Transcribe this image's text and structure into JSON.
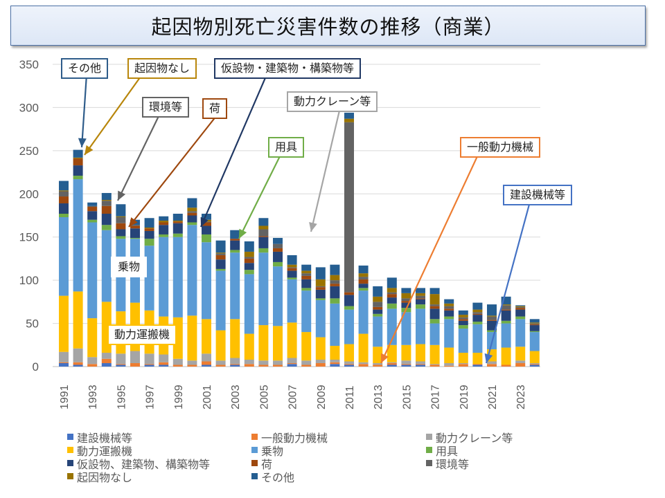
{
  "title": "起因物別死亡災害件数の推移（商業）",
  "chart_data": {
    "type": "bar",
    "stacked": true,
    "title": "起因物別死亡災害件数の推移（商業）",
    "xlabel": "",
    "ylabel": "",
    "ylim": [
      0,
      350
    ],
    "yticks": [
      0,
      50,
      100,
      150,
      200,
      250,
      300,
      350
    ],
    "grid": true,
    "legend_position": "bottom",
    "categories": [
      "1991",
      "1992",
      "1993",
      "1994",
      "1995",
      "1996",
      "1997",
      "1998",
      "1999",
      "2000",
      "2001",
      "2002",
      "2003",
      "2004",
      "2005",
      "2006",
      "2007",
      "2008",
      "2009",
      "2010",
      "2011",
      "2012",
      "2013",
      "2014",
      "2015",
      "2016",
      "2017",
      "2018",
      "2019",
      "2020",
      "2021",
      "2022",
      "2023",
      "2024"
    ],
    "xtick_labels": [
      "1991",
      "1993",
      "1995",
      "1997",
      "1999",
      "2001",
      "2003",
      "2005",
      "2007",
      "2009",
      "2011",
      "2013",
      "2015",
      "2017",
      "2019",
      "2021",
      "2023"
    ],
    "series": [
      {
        "name": "建設機械等",
        "color": "#4472c4",
        "values": [
          4,
          2,
          0,
          4,
          2,
          0,
          2,
          2,
          0,
          0,
          2,
          0,
          2,
          0,
          0,
          0,
          3,
          0,
          0,
          3,
          2,
          0,
          0,
          2,
          2,
          2,
          0,
          0,
          0,
          2,
          0,
          0,
          0,
          2
        ]
      },
      {
        "name": "一般動力機械",
        "color": "#ed7d31",
        "values": [
          1,
          3,
          3,
          5,
          1,
          4,
          1,
          3,
          2,
          2,
          4,
          2,
          1,
          3,
          2,
          2,
          1,
          2,
          4,
          2,
          1,
          3,
          2,
          2,
          1,
          1,
          2,
          1,
          3,
          1,
          3,
          2,
          4,
          1
        ]
      },
      {
        "name": "動力クレーン等",
        "color": "#a5a5a5",
        "values": [
          12,
          16,
          8,
          7,
          12,
          14,
          12,
          9,
          7,
          5,
          9,
          5,
          7,
          5,
          5,
          5,
          6,
          5,
          4,
          3,
          3,
          2,
          2,
          1,
          4,
          3,
          1,
          3,
          1,
          0,
          3,
          0,
          3,
          1
        ]
      },
      {
        "name": "動力運搬機",
        "color": "#ffc000",
        "values": [
          65,
          66,
          45,
          59,
          49,
          56,
          50,
          44,
          48,
          52,
          40,
          35,
          45,
          30,
          41,
          40,
          41,
          33,
          26,
          16,
          20,
          33,
          19,
          20,
          18,
          20,
          22,
          18,
          12,
          13,
          14,
          20,
          16,
          14
        ]
      },
      {
        "name": "乗物",
        "color": "#5b9bd5",
        "values": [
          91,
          130,
          111,
          83,
          84,
          74,
          75,
          92,
          93,
          105,
          89,
          69,
          77,
          69,
          84,
          69,
          50,
          48,
          43,
          49,
          40,
          50,
          35,
          42,
          38,
          41,
          25,
          33,
          28,
          33,
          20,
          28,
          32,
          22
        ]
      },
      {
        "name": "用具",
        "color": "#70ad47",
        "values": [
          4,
          4,
          3,
          6,
          3,
          1,
          8,
          3,
          4,
          3,
          9,
          2,
          3,
          5,
          5,
          5,
          2,
          3,
          2,
          6,
          4,
          3,
          3,
          6,
          5,
          5,
          5,
          3,
          4,
          3,
          2,
          3,
          3,
          1
        ]
      },
      {
        "name": "仮設物、建築物、構築物等",
        "color": "#264478",
        "values": [
          12,
          12,
          10,
          13,
          8,
          11,
          9,
          11,
          12,
          8,
          10,
          11,
          11,
          8,
          13,
          12,
          8,
          10,
          10,
          14,
          13,
          5,
          5,
          7,
          6,
          6,
          12,
          7,
          5,
          8,
          11,
          12,
          8,
          7
        ]
      },
      {
        "name": "荷",
        "color": "#9e480e",
        "values": [
          8,
          8,
          5,
          9,
          7,
          3,
          3,
          3,
          2,
          3,
          4,
          5,
          2,
          5,
          1,
          4,
          3,
          4,
          3,
          3,
          3,
          5,
          3,
          4,
          2,
          1,
          3,
          2,
          2,
          1,
          1,
          1,
          2,
          1
        ]
      },
      {
        "name": "環境等",
        "color": "#636363",
        "values": [
          6,
          0,
          1,
          6,
          7,
          1,
          0,
          0,
          0,
          2,
          1,
          2,
          0,
          2,
          8,
          5,
          1,
          3,
          1,
          4,
          197,
          3,
          6,
          2,
          3,
          3,
          2,
          3,
          2,
          2,
          4,
          5,
          1,
          1
        ]
      },
      {
        "name": "起因物なし",
        "color": "#997300",
        "values": [
          1,
          1,
          0,
          1,
          1,
          0,
          1,
          2,
          1,
          4,
          2,
          1,
          0,
          6,
          4,
          0,
          3,
          3,
          8,
          6,
          4,
          4,
          6,
          5,
          6,
          3,
          12,
          3,
          3,
          3,
          1,
          1,
          1,
          1
        ]
      },
      {
        "name": "その他",
        "color": "#255e91",
        "values": [
          11,
          9,
          4,
          8,
          14,
          6,
          11,
          5,
          8,
          11,
          7,
          14,
          10,
          12,
          9,
          7,
          11,
          7,
          14,
          12,
          7,
          9,
          12,
          12,
          6,
          6,
          7,
          5,
          5,
          8,
          13,
          9,
          1,
          4
        ]
      }
    ],
    "annotations": [
      "その他",
      "起因物なし",
      "仮設物・建築物・構築物等",
      "環境等",
      "荷",
      "動力クレーン等",
      "用具",
      "一般動力機械",
      "建設機械等",
      "乗物",
      "動力運搬機"
    ]
  },
  "callouts": {
    "sonota": "その他",
    "kiinbutsunashi": "起因物なし",
    "kasetsu": "仮設物・建築物・構築物等",
    "kankyo": "環境等",
    "ni": "荷",
    "crane": "動力クレーン等",
    "yougu": "用具",
    "ippan": "一般動力機械",
    "kensetsu": "建設機械等",
    "norimono": "乗物",
    "unpan": "動力運搬機"
  }
}
